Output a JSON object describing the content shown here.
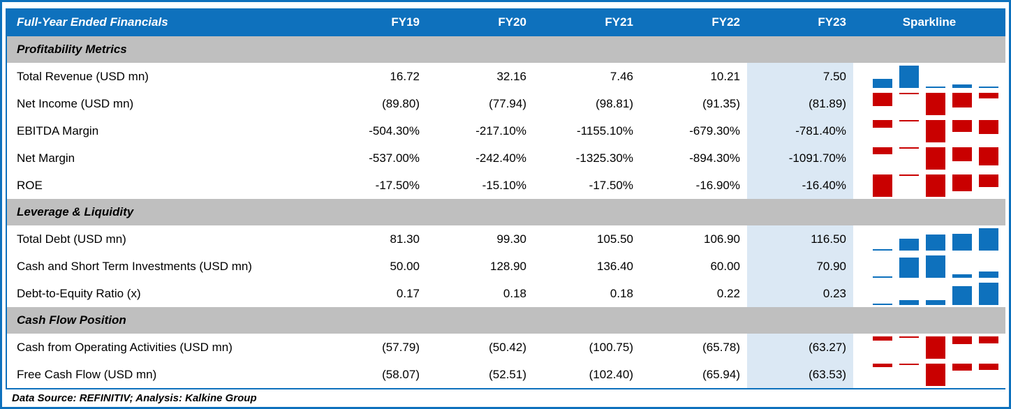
{
  "chart_data": {
    "type": "table",
    "title": "Full-Year Ended Financials",
    "columns": [
      "FY19",
      "FY20",
      "FY21",
      "FY22",
      "FY23"
    ],
    "sparkline_column": "Sparkline",
    "highlighted_column": "FY23",
    "sections": [
      {
        "label": "Profitability Metrics",
        "rows": [
          {
            "label": "Total Revenue (USD mn)",
            "display": [
              "16.72",
              "32.16",
              "7.46",
              "10.21",
              "7.50"
            ],
            "values": [
              16.72,
              32.16,
              7.46,
              10.21,
              7.5
            ],
            "sparkline": "column-positive"
          },
          {
            "label": "Net Income (USD mn)",
            "display": [
              "(89.80)",
              "(77.94)",
              "(98.81)",
              "(91.35)",
              "(81.89)"
            ],
            "values": [
              -89.8,
              -77.94,
              -98.81,
              -91.35,
              -81.89
            ],
            "sparkline": "column-negative"
          },
          {
            "label": "EBITDA Margin",
            "display": [
              "-504.30%",
              "-217.10%",
              "-1155.10%",
              "-679.30%",
              "-781.40%"
            ],
            "values": [
              -504.3,
              -217.1,
              -1155.1,
              -679.3,
              -781.4
            ],
            "sparkline": "column-negative"
          },
          {
            "label": "Net Margin",
            "display": [
              "-537.00%",
              "-242.40%",
              "-1325.30%",
              "-894.30%",
              "-1091.70%"
            ],
            "values": [
              -537.0,
              -242.4,
              -1325.3,
              -894.3,
              -1091.7
            ],
            "sparkline": "column-negative"
          },
          {
            "label": "ROE",
            "display": [
              "-17.50%",
              "-15.10%",
              "-17.50%",
              "-16.90%",
              "-16.40%"
            ],
            "values": [
              -17.5,
              -15.1,
              -17.5,
              -16.9,
              -16.4
            ],
            "sparkline": "column-negative"
          }
        ]
      },
      {
        "label": "Leverage & Liquidity",
        "rows": [
          {
            "label": "Total Debt (USD mn)",
            "display": [
              "81.30",
              "99.30",
              "105.50",
              "106.90",
              "116.50"
            ],
            "values": [
              81.3,
              99.3,
              105.5,
              106.9,
              116.5
            ],
            "sparkline": "column-positive"
          },
          {
            "label": "Cash and Short Term Investments (USD mn)",
            "display": [
              "50.00",
              "128.90",
              "136.40",
              "60.00",
              "70.90"
            ],
            "values": [
              50.0,
              128.9,
              136.4,
              60.0,
              70.9
            ],
            "sparkline": "column-positive"
          },
          {
            "label": "Debt-to-Equity Ratio (x)",
            "display": [
              "0.17",
              "0.18",
              "0.18",
              "0.22",
              "0.23"
            ],
            "values": [
              0.17,
              0.18,
              0.18,
              0.22,
              0.23
            ],
            "sparkline": "column-positive"
          }
        ]
      },
      {
        "label": "Cash Flow Position",
        "rows": [
          {
            "label": "Cash from Operating Activities (USD mn)",
            "display": [
              "(57.79)",
              "(50.42)",
              "(100.75)",
              "(65.78)",
              "(63.27)"
            ],
            "values": [
              -57.79,
              -50.42,
              -100.75,
              -65.78,
              -63.27
            ],
            "sparkline": "column-negative"
          },
          {
            "label": "Free Cash Flow (USD mn)",
            "display": [
              "(58.07)",
              "(52.51)",
              "(102.40)",
              "(65.94)",
              "(63.53)"
            ],
            "values": [
              -58.07,
              -52.51,
              -102.4,
              -65.94,
              -63.53
            ],
            "sparkline": "column-negative"
          }
        ]
      }
    ],
    "footer": "Data Source: REFINITIV; Analysis: Kalkine Group",
    "colors": {
      "header_bg": "#0E71BD",
      "header_text": "#FFFFFF",
      "section_bg": "#BFBFBF",
      "fy23_highlight": "#DBE8F4",
      "sparkline_positive": "#0E71BD",
      "sparkline_negative": "#C90000",
      "frame_border": "#0E71BD",
      "text": "#000000"
    }
  }
}
